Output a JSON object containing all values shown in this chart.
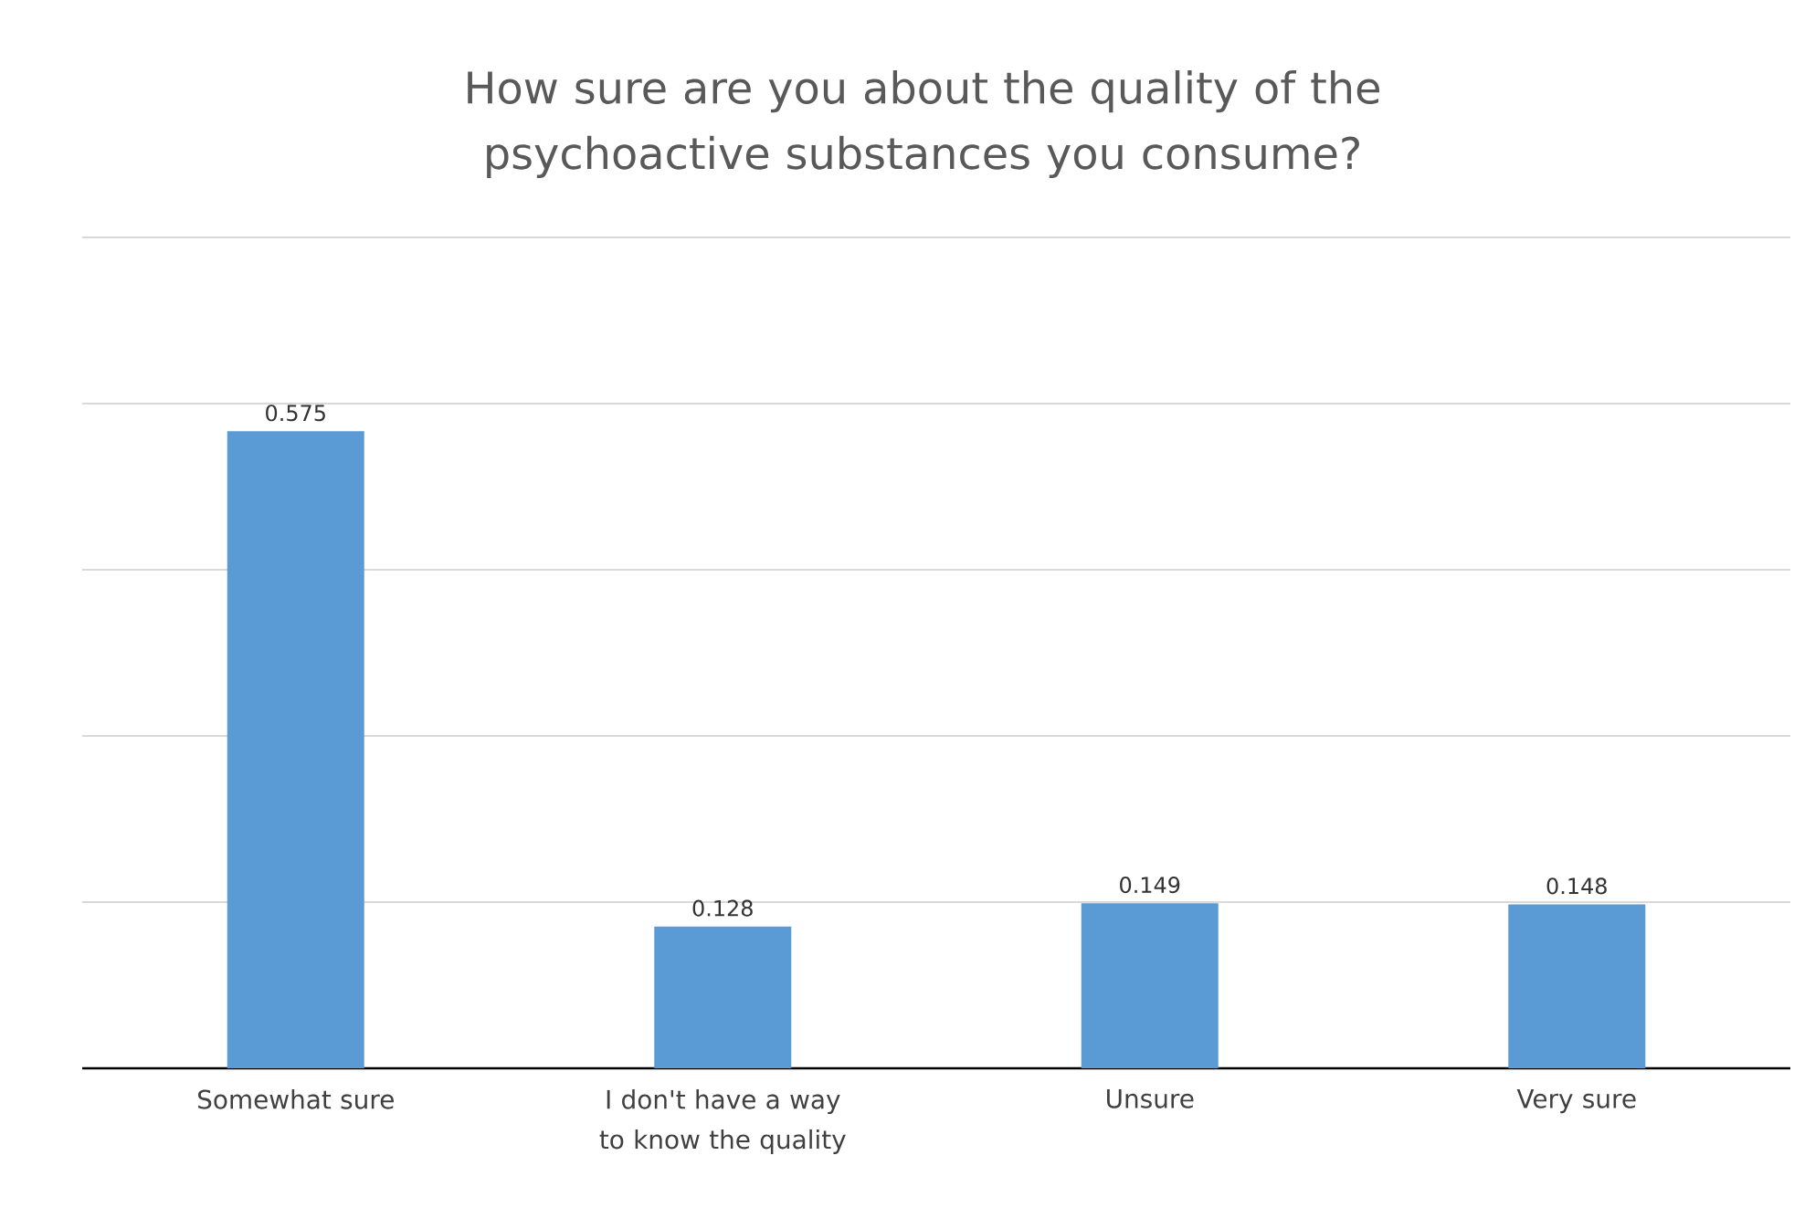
{
  "chart_data": {
    "type": "bar",
    "title": "How sure are you about the quality of the psychoactive substances you consume?",
    "categories": [
      "Somewhat sure",
      "I don't have a way to know the quality",
      "Unsure",
      "Very sure"
    ],
    "values": [
      0.575,
      0.128,
      0.149,
      0.148
    ],
    "color": "#5b9bd5",
    "ylim": [
      0,
      0.75
    ],
    "yticks": [
      {
        "value": 0,
        "label": null
      },
      {
        "value": 0.15,
        "label": null
      },
      {
        "value": 0.3,
        "label": null
      },
      {
        "value": 0.45,
        "label": null
      },
      {
        "value": 0.6,
        "label": null
      },
      {
        "value": 0.75,
        "label": null
      }
    ],
    "tick_labels": "x",
    "grid": "y",
    "data_labels": true
  }
}
